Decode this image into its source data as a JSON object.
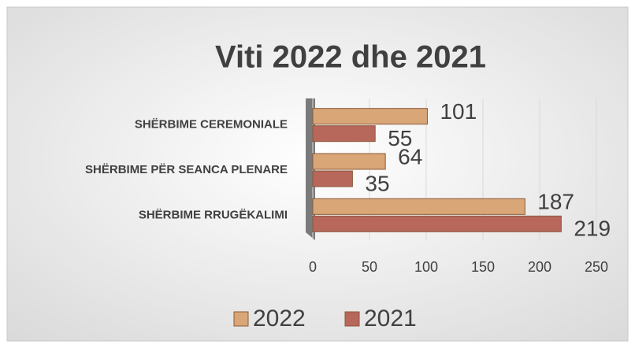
{
  "chart_data": {
    "type": "bar",
    "orientation": "horizontal",
    "title": "Viti 2022 dhe 2021",
    "categories": [
      "SHËRBIME CEREMONIALE",
      "SHËRBIME PËR SEANCA PLENARE",
      "SHËRBIME RRUGËKALIMI"
    ],
    "series": [
      {
        "name": "2022",
        "color": "#d9a677",
        "values": [
          101,
          64,
          187
        ]
      },
      {
        "name": "2021",
        "color": "#b8675b",
        "values": [
          55,
          35,
          219
        ]
      }
    ],
    "xlim": [
      0,
      250
    ],
    "xticks": [
      0,
      50,
      100,
      150,
      200,
      250
    ],
    "grid": true,
    "legend": "bottom"
  }
}
